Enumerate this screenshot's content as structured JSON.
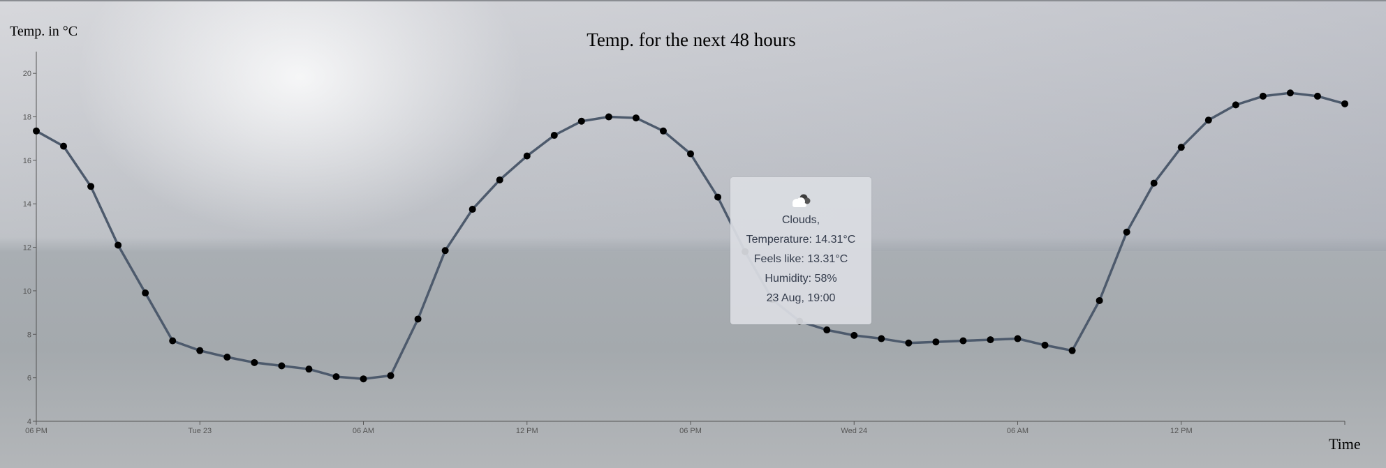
{
  "chart_data": {
    "type": "line",
    "title": "Temp. for the next 48 hours",
    "ylabel": "Temp. in °C",
    "xlabel": "Time",
    "ylim": [
      4,
      21
    ],
    "y_ticks": [
      4,
      6,
      8,
      10,
      12,
      14,
      16,
      18,
      20
    ],
    "x_ticks": [
      {
        "index": 0,
        "label": "06 PM"
      },
      {
        "index": 6,
        "label": "Tue 23"
      },
      {
        "index": 12,
        "label": "06 AM"
      },
      {
        "index": 18,
        "label": "12 PM"
      },
      {
        "index": 24,
        "label": "06 PM"
      },
      {
        "index": 30,
        "label": "Wed 24"
      },
      {
        "index": 36,
        "label": "06 AM"
      },
      {
        "index": 42,
        "label": "12 PM"
      }
    ],
    "grid": false,
    "line_color": "#4d5a6c",
    "point_color": "#000000",
    "series": [
      {
        "values": [
          17.35,
          16.65,
          14.8,
          12.1,
          9.9,
          7.7,
          7.25,
          6.95,
          6.7,
          6.55,
          6.4,
          6.05,
          5.95,
          6.1,
          8.7,
          11.85,
          13.75,
          15.1,
          16.2,
          17.15,
          17.8,
          18.0,
          17.95,
          17.35,
          16.3,
          14.31,
          11.8,
          9.6,
          8.6,
          8.2,
          7.95,
          7.8,
          7.6,
          7.65,
          7.7,
          7.75,
          7.8,
          7.5,
          7.25,
          9.55,
          12.7,
          14.95,
          16.6,
          17.85,
          18.55,
          18.95,
          19.1,
          18.95,
          18.6
        ]
      }
    ]
  },
  "tooltip": {
    "icon": "clouds-icon",
    "weather": "Clouds,",
    "temperature": "Temperature: 14.31°C",
    "feels_like": "Feels like: 13.31°C",
    "humidity": "Humidity: 58%",
    "datetime": "23 Aug, 19:00"
  }
}
